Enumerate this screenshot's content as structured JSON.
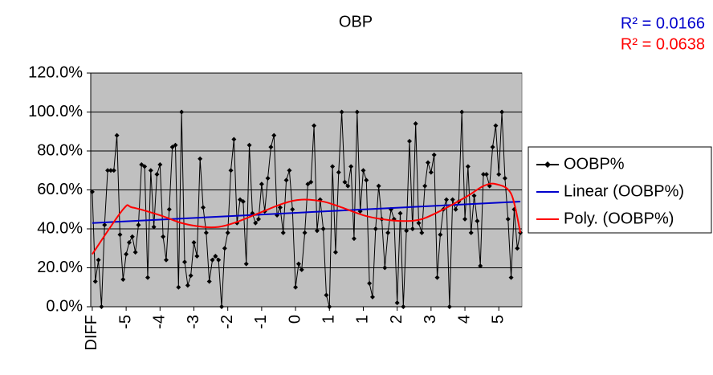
{
  "chart_data": {
    "type": "line",
    "title": "OBP",
    "annotations": [
      {
        "text": "R² = 0.0166",
        "color": "#0000cc"
      },
      {
        "text": "R² = 0.0638",
        "color": "#ff0000"
      }
    ],
    "categories": [
      "DIFF",
      null,
      null,
      null,
      null,
      null,
      null,
      null,
      null,
      null,
      null,
      "-5",
      null,
      null,
      null,
      null,
      null,
      null,
      null,
      null,
      null,
      null,
      "-4",
      null,
      null,
      null,
      null,
      null,
      null,
      null,
      null,
      null,
      null,
      "-3",
      null,
      null,
      null,
      null,
      null,
      null,
      null,
      null,
      null,
      null,
      "-2",
      null,
      null,
      null,
      null,
      null,
      null,
      null,
      null,
      null,
      null,
      "-1",
      null,
      null,
      null,
      null,
      null,
      null,
      null,
      null,
      null,
      null,
      "0",
      null,
      null,
      null,
      null,
      null,
      null,
      null,
      null,
      null,
      null,
      "1",
      null,
      null,
      null,
      null,
      null,
      null,
      null,
      null,
      null,
      null,
      "1",
      null,
      null,
      null,
      null,
      null,
      null,
      null,
      null,
      null,
      null,
      "2",
      null,
      null,
      null,
      null,
      null,
      null,
      null,
      null,
      null,
      null,
      "3",
      null,
      null,
      null,
      null,
      null,
      null,
      null,
      null,
      null,
      null,
      "4",
      null,
      null,
      null,
      null,
      null,
      null,
      null,
      null,
      null,
      null,
      "5",
      null,
      null,
      null,
      null,
      null,
      null,
      null
    ],
    "series": [
      {
        "name": "OOBP%",
        "color": "#000000",
        "values": [
          0.59,
          0.13,
          0.24,
          0.0,
          0.42,
          0.7,
          0.7,
          0.7,
          0.88,
          0.37,
          0.14,
          0.27,
          0.33,
          0.36,
          0.28,
          0.42,
          0.73,
          0.72,
          0.15,
          0.7,
          0.41,
          0.68,
          0.73,
          0.36,
          0.24,
          0.5,
          0.82,
          0.83,
          0.1,
          1.0,
          0.23,
          0.11,
          0.16,
          0.33,
          0.26,
          0.76,
          0.51,
          0.38,
          0.13,
          0.24,
          0.26,
          0.24,
          0.0,
          0.3,
          0.38,
          0.7,
          0.86,
          0.43,
          0.55,
          0.54,
          0.22,
          0.83,
          0.48,
          0.43,
          0.45,
          0.63,
          0.49,
          0.66,
          0.82,
          0.88,
          0.47,
          0.51,
          0.38,
          0.65,
          0.7,
          0.5,
          0.1,
          0.22,
          0.19,
          0.38,
          0.63,
          0.64,
          0.93,
          0.39,
          0.55,
          0.4,
          0.06,
          0.0,
          0.72,
          0.28,
          0.69,
          1.0,
          0.64,
          0.62,
          0.72,
          0.35,
          1.0,
          0.49,
          0.7,
          0.65,
          0.12,
          0.05,
          0.4,
          0.62,
          0.45,
          0.2,
          0.38,
          0.5,
          0.45,
          0.02,
          0.48,
          0.0,
          0.39,
          0.85,
          0.4,
          0.94,
          0.43,
          0.38,
          0.62,
          0.74,
          0.69,
          0.78,
          0.15,
          0.37,
          0.5,
          0.55,
          0.0,
          0.55,
          0.5,
          0.54,
          1.0,
          0.45,
          0.72,
          0.38,
          0.57,
          0.44,
          0.21,
          0.68,
          0.68,
          0.62,
          0.82,
          0.93,
          0.68,
          1.0,
          0.66,
          0.45,
          0.15,
          0.5,
          0.3,
          0.38
        ]
      },
      {
        "name": "Linear (OOBP%)",
        "color": "#0000cc",
        "x": [
          0,
          139
        ],
        "values": [
          0.43,
          0.54
        ]
      },
      {
        "name": "Poly. (OOBP%)",
        "color": "#ff0000",
        "x": [
          0,
          10,
          13,
          22,
          29,
          36,
          41,
          46,
          54,
          62,
          68,
          75,
          81,
          88,
          94,
          101,
          107,
          114,
          122,
          127,
          131,
          136,
          139
        ],
        "values": [
          0.27,
          0.5,
          0.51,
          0.47,
          0.43,
          0.41,
          0.41,
          0.43,
          0.48,
          0.53,
          0.55,
          0.54,
          0.51,
          0.47,
          0.45,
          0.44,
          0.45,
          0.5,
          0.57,
          0.62,
          0.63,
          0.58,
          0.38
        ]
      }
    ],
    "ylim": [
      0,
      1.2
    ],
    "yticks": [
      {
        "value": 0,
        "label": "0.0%"
      },
      {
        "value": 0.2,
        "label": "20.0%"
      },
      {
        "value": 0.4,
        "label": "40.0%"
      },
      {
        "value": 0.6,
        "label": "60.0%"
      },
      {
        "value": 0.8,
        "label": "80.0%"
      },
      {
        "value": 1.0,
        "label": "100.0%"
      },
      {
        "value": 1.2,
        "label": "120.0%"
      }
    ],
    "grid": true,
    "background": "#c0c0c0",
    "legend": "right"
  }
}
